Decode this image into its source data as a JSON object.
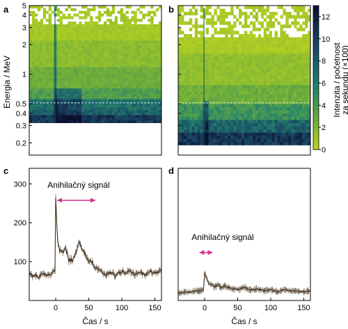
{
  "figure": {
    "panels": [
      "a",
      "b",
      "c",
      "d"
    ],
    "energy_axis_label": "Energia / MeV",
    "time_axis_label": "Čas / s",
    "colorbar_label_line1": "Intenzita / početnost",
    "colorbar_label_line2": "za sekundu (×100)",
    "annihilation_label": "Anihilačný signál",
    "colors": {
      "accent_magenta": "#d6308c",
      "curve": "#3d2b14",
      "frame": "#000000",
      "dashed_line": "#cfe8f5"
    }
  },
  "chart_data": [
    {
      "panel": "a",
      "type": "heatmap",
      "x": {
        "range": [
          -40,
          165
        ],
        "scale": "linear",
        "tick_labels_shown": false
      },
      "y": {
        "label": "Energia / MeV",
        "range": [
          0.15,
          5
        ],
        "scale": "log",
        "ticks": [
          0.2,
          0.3,
          0.4,
          0.5,
          1,
          2,
          3,
          4,
          5
        ],
        "tick_labels": [
          "0.2",
          "0.3",
          "0.4",
          "0.5",
          "1",
          "2",
          "3",
          "4",
          "5"
        ]
      },
      "data_energy_range": [
        0.32,
        5
      ],
      "annotations": {
        "dashed_horizontal_at_MeV": 0.511,
        "vertical_burst_at_s": 0
      }
    },
    {
      "panel": "b",
      "type": "heatmap",
      "x": {
        "range": [
          -40,
          165
        ],
        "scale": "linear",
        "tick_labels_shown": false
      },
      "y": {
        "range": [
          0.15,
          5
        ],
        "scale": "log",
        "tick_labels_shown": false
      },
      "data_energy_range": [
        0.19,
        5
      ],
      "annotations": {
        "dashed_horizontal_at_MeV": 0.511,
        "vertical_burst_at_s": 0
      },
      "colorbar": {
        "label": "Intenzita / početnost za sekundu (×100)",
        "range": [
          0,
          13
        ],
        "ticks": [
          0,
          2,
          4,
          6,
          8,
          10,
          12
        ],
        "tick_labels": [
          "0",
          "2",
          "4",
          "6",
          "8",
          "10",
          "12"
        ],
        "colors": [
          "#bdd41f",
          "#6fae3b",
          "#2a8767",
          "#1b5f6b",
          "#173758",
          "#0b1030"
        ]
      }
    },
    {
      "panel": "c",
      "type": "line",
      "xlabel": "Čas / s",
      "ylabel": "",
      "xlim": [
        -40,
        160
      ],
      "ylim": [
        0,
        340
      ],
      "xticks": [
        0,
        50,
        100,
        150
      ],
      "xtick_labels": [
        "0",
        "50",
        "100",
        "150"
      ],
      "yticks": [
        100,
        200,
        300
      ],
      "ytick_labels": [
        "100",
        "200",
        "300"
      ],
      "annotation": {
        "text": "Anihilačný signál",
        "arrow_from": 2,
        "arrow_to": 60
      },
      "series": [
        {
          "x": [
            -40,
            -35,
            -30,
            -25,
            -20,
            -15,
            -10,
            -5,
            -1,
            0,
            1,
            3,
            6,
            10,
            15,
            20,
            25,
            30,
            35,
            40,
            45,
            50,
            55,
            60,
            65,
            70,
            75,
            80,
            85,
            90,
            95,
            100,
            105,
            110,
            115,
            120,
            125,
            130,
            135,
            140,
            145,
            150,
            155,
            160
          ],
          "y": [
            70,
            63,
            66,
            60,
            70,
            66,
            64,
            73,
            75,
            265,
            215,
            160,
            130,
            120,
            135,
            104,
            104,
            122,
            148,
            132,
            118,
            103,
            98,
            85,
            78,
            72,
            68,
            70,
            72,
            65,
            70,
            75,
            68,
            80,
            72,
            67,
            75,
            70,
            66,
            72,
            74,
            70,
            73,
            75
          ]
        }
      ]
    },
    {
      "panel": "d",
      "type": "line",
      "xlabel": "Čas / s",
      "ylabel": "",
      "xlim": [
        -40,
        160
      ],
      "ylim": [
        0,
        340
      ],
      "xticks": [
        0,
        50,
        100,
        150
      ],
      "xtick_labels": [
        "0",
        "50",
        "100",
        "150"
      ],
      "annotation": {
        "text": "Anihilačný signál",
        "arrow_from": -8,
        "arrow_to": 12
      },
      "series": [
        {
          "x": [
            -40,
            -30,
            -20,
            -10,
            -2,
            0,
            2,
            6,
            10,
            15,
            20,
            25,
            30,
            40,
            50,
            60,
            70,
            80,
            90,
            100,
            110,
            120,
            130,
            140,
            150,
            160
          ],
          "y": [
            18,
            22,
            22,
            25,
            26,
            70,
            62,
            45,
            42,
            35,
            40,
            33,
            37,
            32,
            28,
            33,
            26,
            30,
            25,
            28,
            22,
            28,
            25,
            24,
            22,
            25
          ]
        }
      ]
    }
  ]
}
